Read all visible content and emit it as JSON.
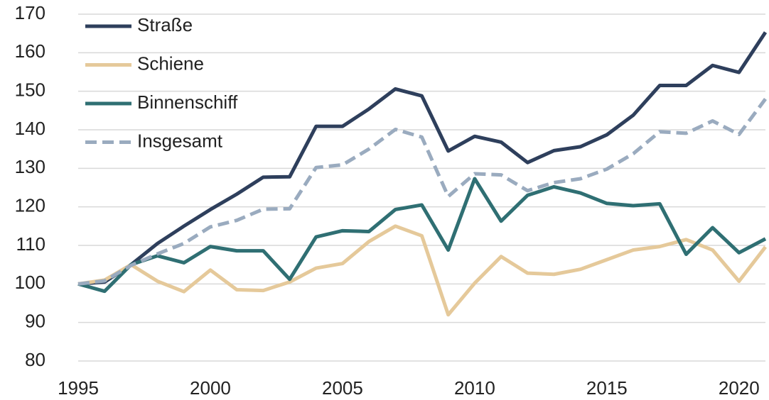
{
  "chart_data": {
    "type": "line",
    "x": [
      1995,
      1996,
      1997,
      1998,
      1999,
      2000,
      2001,
      2002,
      2003,
      2004,
      2005,
      2006,
      2007,
      2008,
      2009,
      2010,
      2011,
      2012,
      2013,
      2014,
      2015,
      2016,
      2017,
      2018,
      2019,
      2020,
      2021
    ],
    "series": [
      {
        "name": "Straße",
        "color": "#2e3f5c",
        "values": [
          100,
          100.5,
          105,
          110.5,
          115,
          119.3,
          123.3,
          127.7,
          127.8,
          140.9,
          140.9,
          145.4,
          150.6,
          148.8,
          134.5,
          138.3,
          136.8,
          131.5,
          134.6,
          135.6,
          138.7,
          143.8,
          151.5,
          151.5,
          156.7,
          154.9,
          165.3
        ]
      },
      {
        "name": "Schiene",
        "color": "#e5c99a",
        "values": [
          100,
          101,
          105,
          100.7,
          98,
          103.6,
          98.5,
          98.3,
          100.5,
          104.1,
          105.3,
          111,
          115,
          112.5,
          92,
          100.2,
          107.1,
          102.8,
          102.5,
          103.8,
          106.3,
          108.8,
          109.7,
          111.5,
          108.8,
          100.7,
          109.6
        ]
      },
      {
        "name": "Binnenschiff",
        "color": "#2f6f73",
        "values": [
          100,
          98.1,
          105,
          107.3,
          105.5,
          109.7,
          108.6,
          108.6,
          101.2,
          112.2,
          113.8,
          113.6,
          119.3,
          120.5,
          108.8,
          127.3,
          116.3,
          123,
          125.2,
          123.6,
          120.9,
          120.3,
          120.8,
          107.7,
          114.6,
          108.1,
          111.7
        ]
      },
      {
        "name": "Insgesamt",
        "color": "#9aabbf",
        "dashed": true,
        "values": [
          100,
          100.8,
          104.8,
          107.8,
          110.5,
          114.8,
          116.5,
          119.4,
          119.5,
          130.2,
          130.9,
          135,
          140.1,
          138.1,
          122.7,
          128.6,
          128.3,
          124.2,
          126.3,
          127.3,
          129.8,
          133.8,
          139.5,
          139.1,
          142.3,
          138.8,
          148
        ]
      }
    ],
    "xlim": [
      1995,
      2021
    ],
    "xticks": [
      1995,
      2000,
      2005,
      2010,
      2015,
      2020
    ],
    "ylim": [
      80,
      170
    ],
    "yticks": [
      80,
      90,
      100,
      110,
      120,
      130,
      140,
      150,
      160,
      170
    ],
    "grid": true,
    "legend": "top-left"
  }
}
